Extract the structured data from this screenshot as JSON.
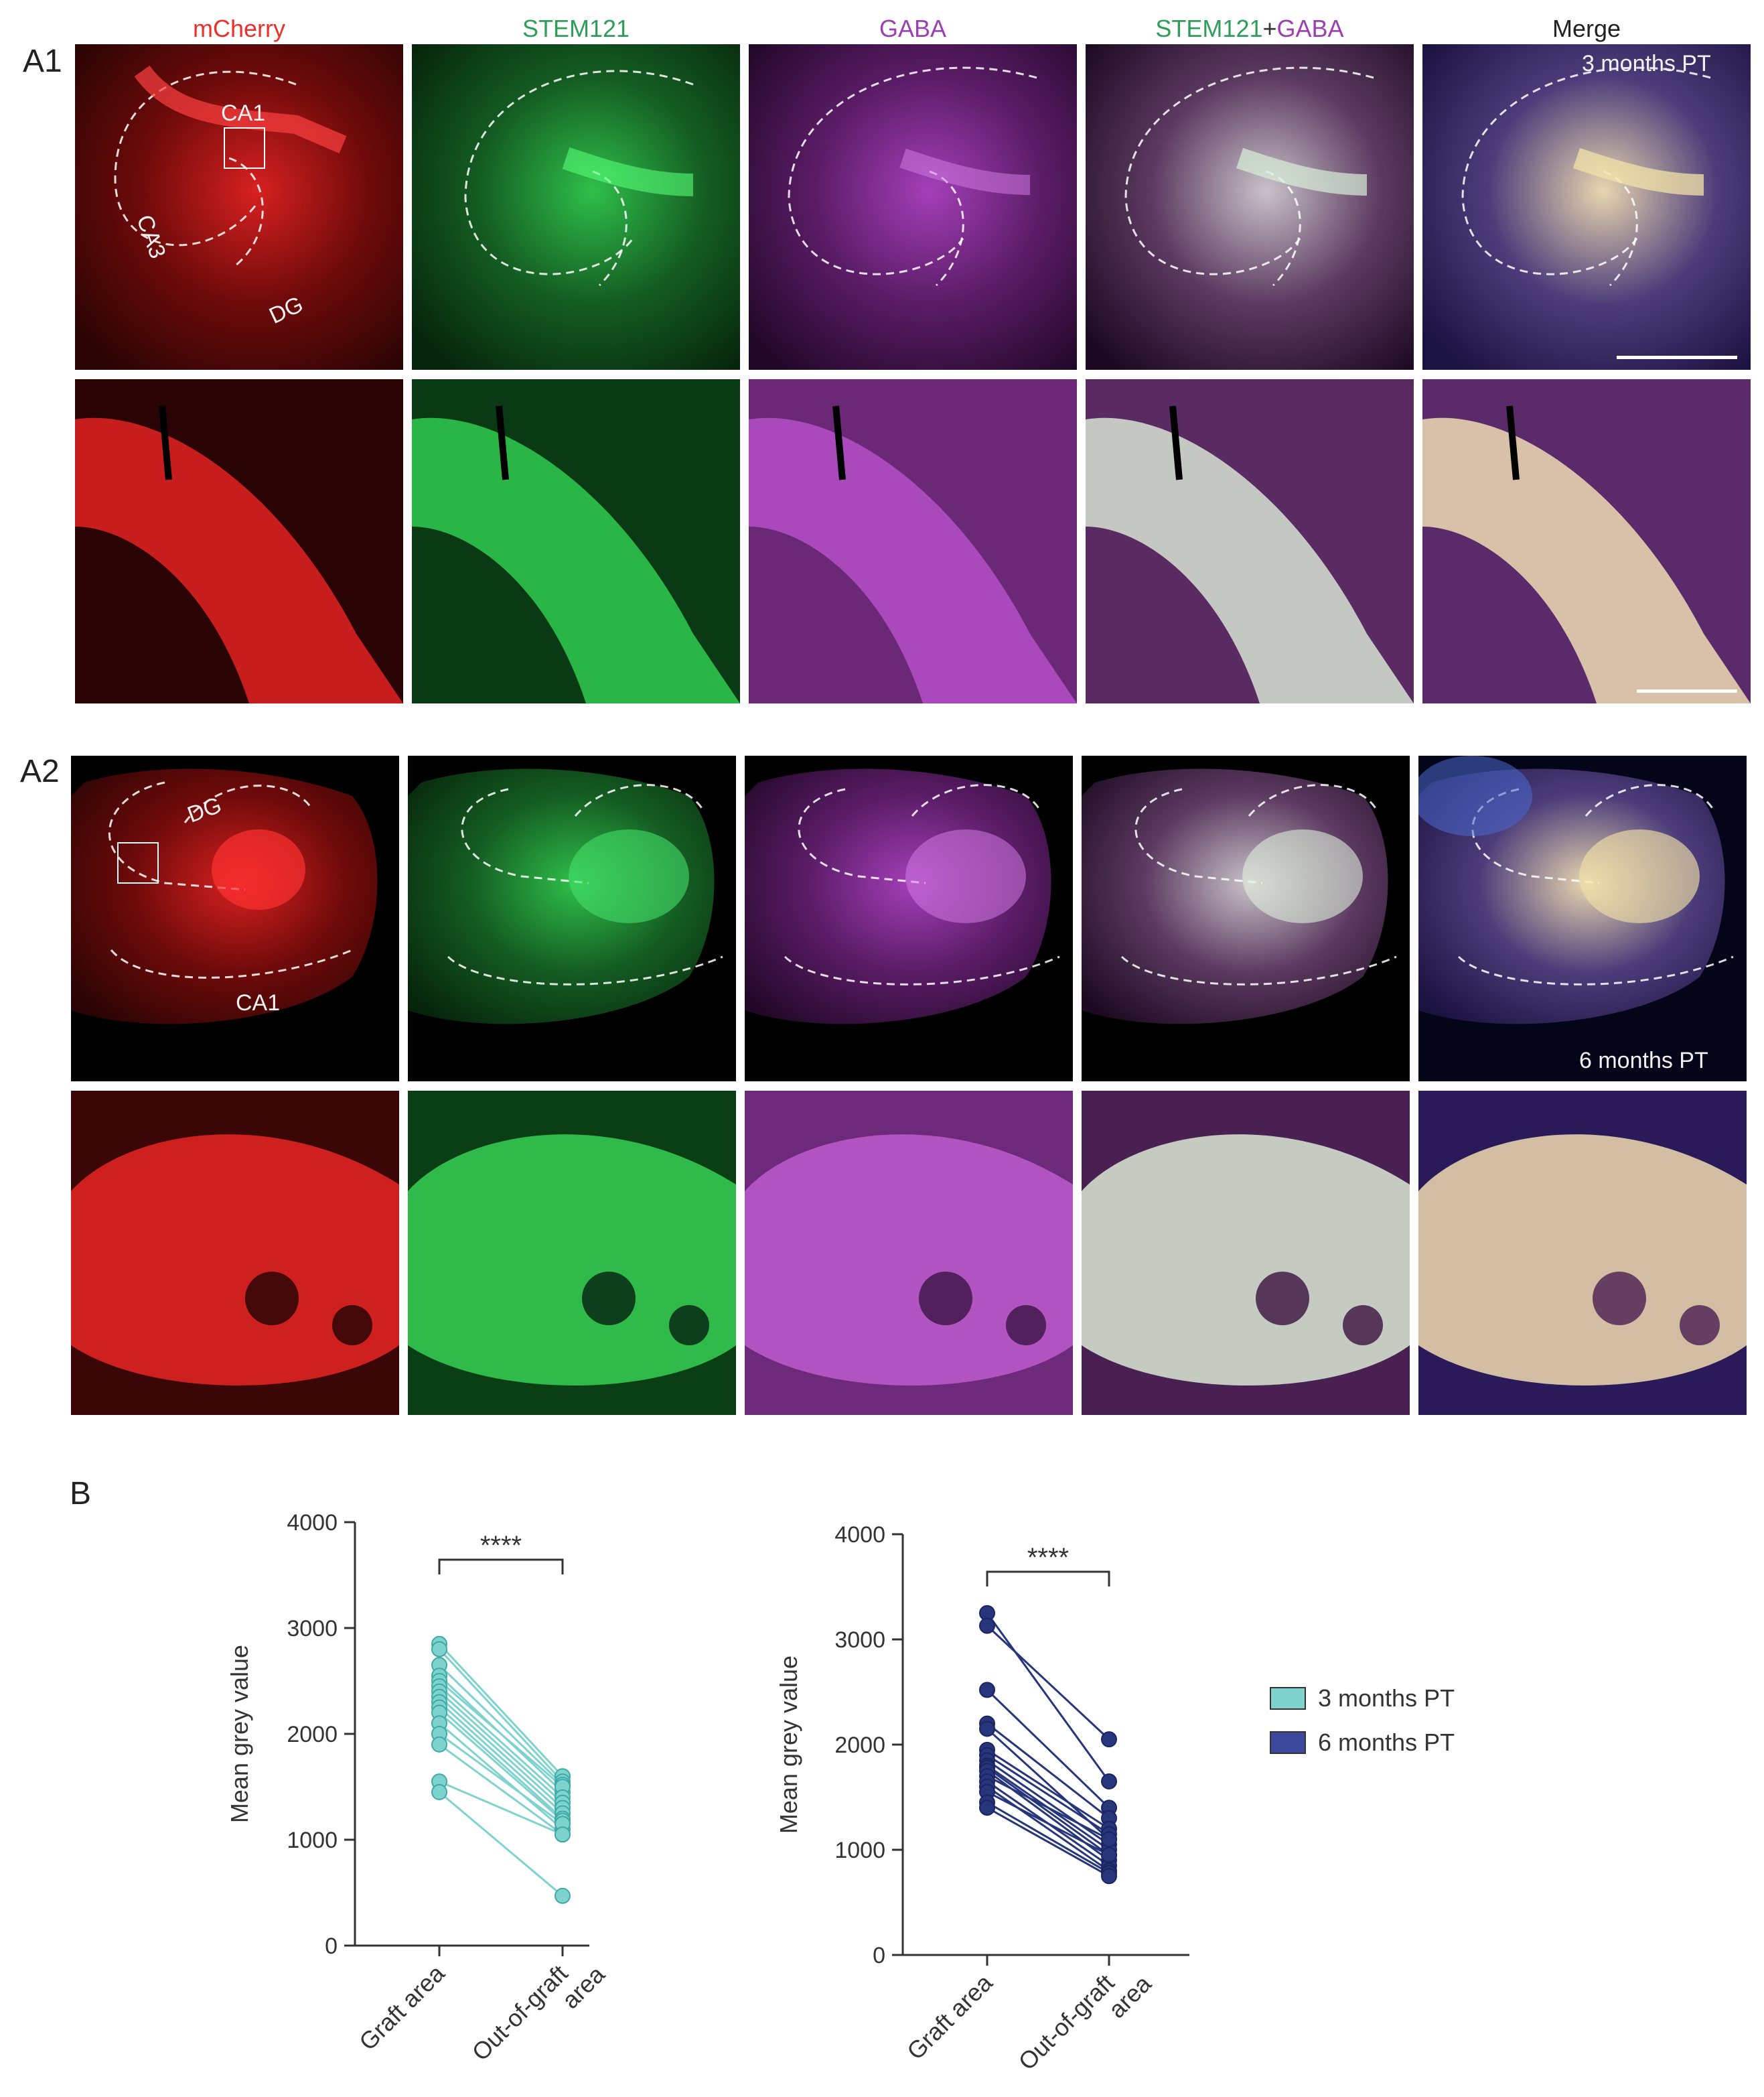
{
  "columns": {
    "mcherry": {
      "label": "mCherry",
      "color": "#e8312b"
    },
    "stem121": {
      "label": "STEM121",
      "color": "#2f9e5a"
    },
    "gaba": {
      "label": "GABA",
      "color": "#9c3fb0"
    },
    "combo_a": {
      "label": "STEM121",
      "color": "#2f9e5a"
    },
    "combo_plus": {
      "label": "+",
      "color": "#333333"
    },
    "combo_b": {
      "label": "GABA",
      "color": "#9c3fb0"
    },
    "merge": {
      "label": "Merge",
      "color": "#222222"
    }
  },
  "rows": {
    "a1": {
      "label": "A1",
      "timepoint": "3 months PT",
      "regions": {
        "ca1": "CA1",
        "ca3": "CA3",
        "dg": "DG"
      }
    },
    "a2": {
      "label": "A2",
      "timepoint": "6 months PT",
      "regions": {
        "dg": "DG",
        "ca1": "CA1"
      }
    }
  },
  "panel_b_label": "B",
  "legend": [
    {
      "label": "3 months PT",
      "color": "#7fd3cf"
    },
    {
      "label": "6 months PT",
      "color": "#3b4a9c"
    }
  ],
  "chart_data": [
    {
      "type": "scatter",
      "subtype": "paired-before-after",
      "series_name": "3 months PT",
      "color": "#7fd3cf",
      "ylabel": "Mean grey value",
      "ylim": [
        0,
        4000
      ],
      "yticks": [
        0,
        1000,
        2000,
        3000,
        4000
      ],
      "categories": [
        "Graft area",
        "Out-of-graft area"
      ],
      "category_lines": [
        [
          "Graft area"
        ],
        [
          "Out-of-graft",
          "area"
        ]
      ],
      "significance": "****",
      "pairs": [
        [
          2850,
          1600
        ],
        [
          2800,
          1550
        ],
        [
          2650,
          1520
        ],
        [
          2550,
          1450
        ],
        [
          2500,
          1500
        ],
        [
          2450,
          1400
        ],
        [
          2400,
          1350
        ],
        [
          2350,
          1300
        ],
        [
          2300,
          1250
        ],
        [
          2250,
          1200
        ],
        [
          2200,
          1180
        ],
        [
          2100,
          1100
        ],
        [
          2000,
          1150
        ],
        [
          1900,
          1050
        ],
        [
          1550,
          1050
        ],
        [
          1450,
          470
        ]
      ]
    },
    {
      "type": "scatter",
      "subtype": "paired-before-after",
      "series_name": "6 months PT",
      "color": "#27357a",
      "ylabel": "Mean grey value",
      "ylim": [
        0,
        4000
      ],
      "yticks": [
        0,
        1000,
        2000,
        3000,
        4000
      ],
      "categories": [
        "Graft area",
        "Out-of-graft area"
      ],
      "category_lines": [
        [
          "Graft area"
        ],
        [
          "Out-of-graft",
          "area"
        ]
      ],
      "significance": "****",
      "pairs": [
        [
          3250,
          1650
        ],
        [
          3130,
          2050
        ],
        [
          2520,
          1400
        ],
        [
          2200,
          1300
        ],
        [
          2150,
          1100
        ],
        [
          1950,
          1200
        ],
        [
          1900,
          1150
        ],
        [
          1850,
          1050
        ],
        [
          1800,
          1000
        ],
        [
          1780,
          950
        ],
        [
          1750,
          900
        ],
        [
          1700,
          1100
        ],
        [
          1650,
          850
        ],
        [
          1600,
          800
        ],
        [
          1550,
          950
        ],
        [
          1450,
          780
        ],
        [
          1400,
          750
        ]
      ]
    }
  ]
}
